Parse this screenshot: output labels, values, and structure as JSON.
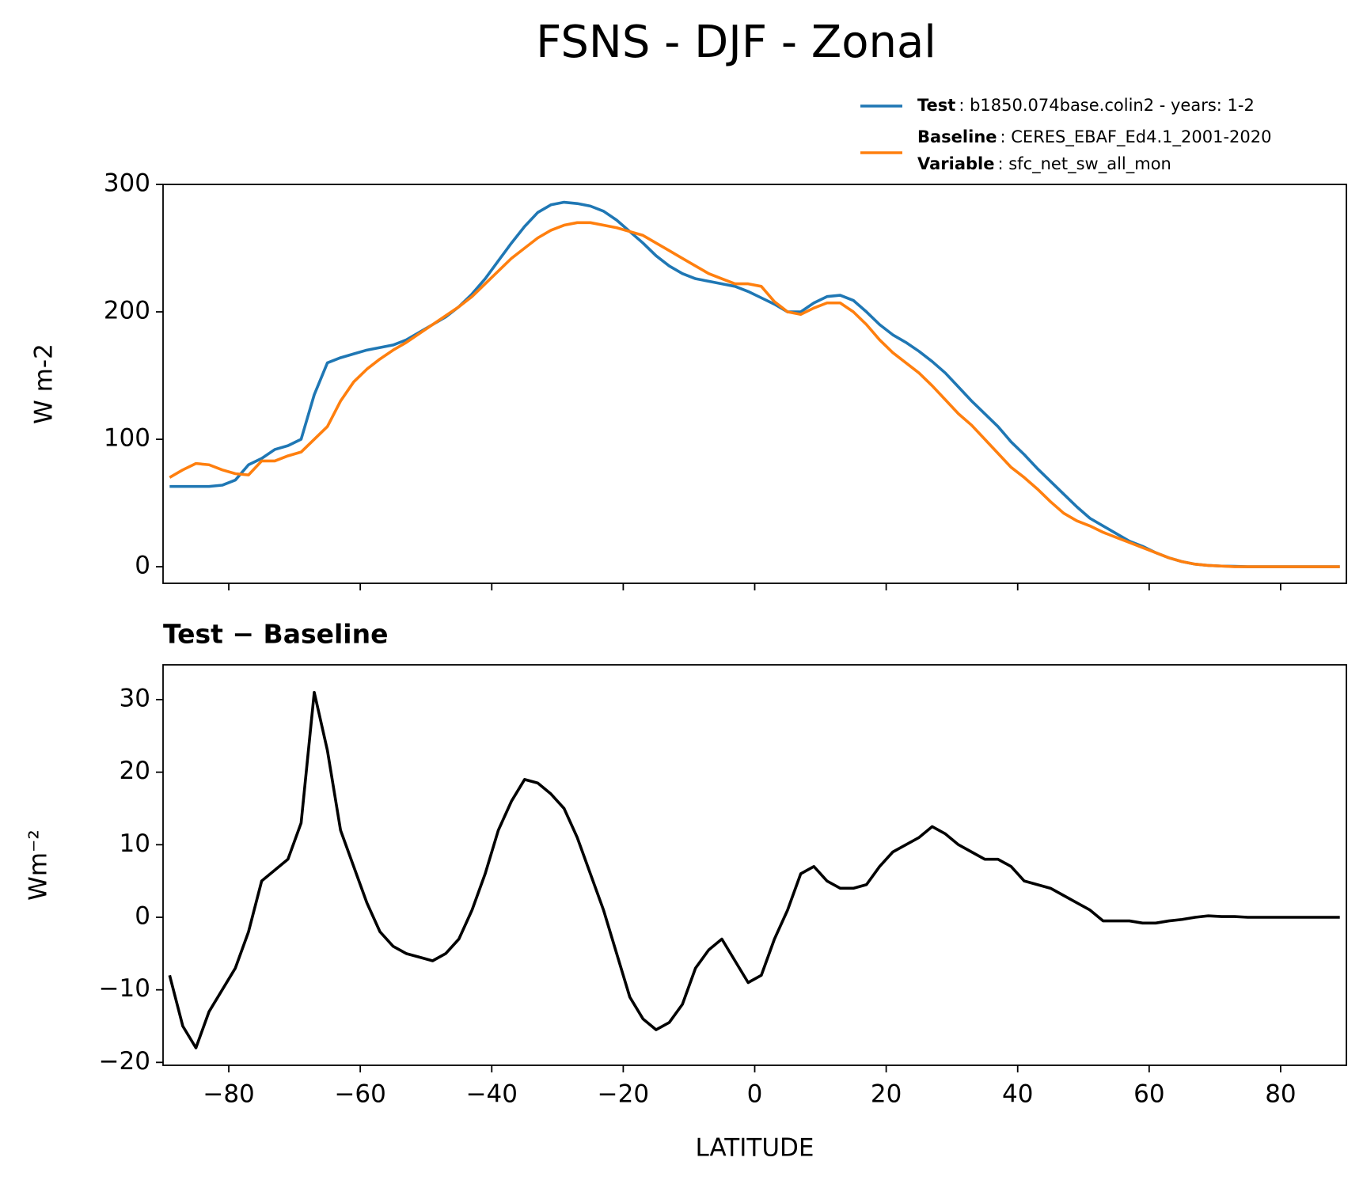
{
  "chart_data": [
    {
      "type": "line",
      "title": "FSNS - DJF - Zonal",
      "ylabel": "W m-2",
      "x": [
        -89,
        -87,
        -85,
        -83,
        -81,
        -79,
        -77,
        -75,
        -73,
        -71,
        -69,
        -67,
        -65,
        -63,
        -61,
        -59,
        -57,
        -55,
        -53,
        -51,
        -49,
        -47,
        -45,
        -43,
        -41,
        -39,
        -37,
        -35,
        -33,
        -31,
        -29,
        -27,
        -25,
        -23,
        -21,
        -19,
        -17,
        -15,
        -13,
        -11,
        -9,
        -7,
        -5,
        -3,
        -1,
        1,
        3,
        5,
        7,
        9,
        11,
        13,
        15,
        17,
        19,
        21,
        23,
        25,
        27,
        29,
        31,
        33,
        35,
        37,
        39,
        41,
        43,
        45,
        47,
        49,
        51,
        53,
        55,
        57,
        59,
        61,
        63,
        65,
        67,
        69,
        71,
        73,
        75,
        77,
        79,
        81,
        83,
        85,
        87,
        89
      ],
      "series": [
        {
          "name": "Test",
          "label": ": b1850.074base.colin2 - years: 1-2",
          "color": "#1f77b4",
          "values": [
            63,
            63,
            63,
            63,
            64,
            68,
            80,
            85,
            92,
            95,
            100,
            135,
            160,
            164,
            167,
            170,
            172,
            174,
            178,
            184,
            190,
            196,
            204,
            214,
            226,
            240,
            254,
            267,
            278,
            284,
            286,
            285,
            283,
            279,
            272,
            263,
            254,
            244,
            236,
            230,
            226,
            224,
            222,
            220,
            216,
            211,
            206,
            200,
            200,
            207,
            212,
            213,
            209,
            200,
            190,
            182,
            176,
            169,
            161,
            152,
            141,
            130,
            120,
            110,
            98,
            88,
            77,
            67,
            57,
            47,
            38,
            32,
            26,
            20,
            16,
            11,
            7,
            4,
            2,
            1,
            0.5,
            0.3,
            0,
            0,
            0,
            0,
            0,
            0,
            0,
            0
          ]
        },
        {
          "name": "Baseline",
          "label": ": CERES_EBAF_Ed4.1_2001-2020",
          "color": "#ff7f0e",
          "values": [
            70,
            76,
            81,
            80,
            76,
            73,
            72,
            83,
            83,
            87,
            90,
            100,
            110,
            130,
            145,
            155,
            163,
            170,
            176,
            183,
            190,
            197,
            204,
            212,
            222,
            232,
            242,
            250,
            258,
            264,
            268,
            270,
            270,
            268,
            266,
            263,
            260,
            254,
            248,
            242,
            236,
            230,
            226,
            222,
            222,
            220,
            208,
            200,
            198,
            203,
            207,
            207,
            200,
            190,
            178,
            168,
            160,
            152,
            142,
            131,
            120,
            111,
            100,
            89,
            78,
            70,
            61,
            51,
            42,
            36,
            32,
            27,
            23,
            19,
            15,
            11,
            7,
            4,
            2,
            1,
            0.5,
            0,
            0,
            0,
            0,
            0,
            0,
            0,
            0,
            0
          ]
        }
      ],
      "legend_notes": [
        {
          "name": "Variable",
          "label": ": sfc_net_sw_all_mon"
        }
      ],
      "xlim": [
        -90,
        90
      ],
      "xticks": [
        -80,
        -60,
        -40,
        -20,
        0,
        20,
        40,
        60,
        80
      ],
      "ylim": [
        -13,
        300
      ],
      "yticks": [
        0,
        100,
        200,
        300
      ]
    },
    {
      "type": "line",
      "title": "Test − Baseline",
      "xlabel": "LATITUDE",
      "ylabel": "Wm⁻²",
      "x": [
        -89,
        -87,
        -85,
        -83,
        -81,
        -79,
        -77,
        -75,
        -73,
        -71,
        -69,
        -67,
        -65,
        -63,
        -61,
        -59,
        -57,
        -55,
        -53,
        -51,
        -49,
        -47,
        -45,
        -43,
        -41,
        -39,
        -37,
        -35,
        -33,
        -31,
        -29,
        -27,
        -25,
        -23,
        -21,
        -19,
        -17,
        -15,
        -13,
        -11,
        -9,
        -7,
        -5,
        -3,
        -1,
        1,
        3,
        5,
        7,
        9,
        11,
        13,
        15,
        17,
        19,
        21,
        23,
        25,
        27,
        29,
        31,
        33,
        35,
        37,
        39,
        41,
        43,
        45,
        47,
        49,
        51,
        53,
        55,
        57,
        59,
        61,
        63,
        65,
        67,
        69,
        71,
        73,
        75,
        77,
        79,
        81,
        83,
        85,
        87,
        89
      ],
      "series": [
        {
          "name": "Test − Baseline",
          "color": "#000000",
          "values": [
            -8,
            -15,
            -18,
            -13,
            -10,
            -7,
            -2,
            5,
            6.5,
            8,
            13,
            31,
            23,
            12,
            7,
            2,
            -2,
            -4,
            -5,
            -5.5,
            -6,
            -5,
            -3,
            1,
            6,
            12,
            16,
            19,
            18.5,
            17,
            15,
            11,
            6,
            1,
            -5,
            -11,
            -14,
            -15.5,
            -14.5,
            -12,
            -7,
            -4.5,
            -3,
            -6,
            -9,
            -8,
            -3,
            1,
            6,
            7,
            5,
            4,
            4,
            4.5,
            7,
            9,
            10,
            11,
            12.5,
            11.5,
            10,
            9,
            8,
            8,
            7,
            5,
            4.5,
            4,
            3,
            2,
            1,
            -0.5,
            -0.5,
            -0.5,
            -0.8,
            -0.8,
            -0.5,
            -0.3,
            0,
            0.2,
            0.1,
            0.1,
            0,
            0,
            0,
            0,
            0,
            0,
            0,
            0
          ]
        }
      ],
      "xlim": [
        -90,
        90
      ],
      "xticks": [
        {
          "value": -80,
          "label": "−80"
        },
        {
          "value": -60,
          "label": "−60"
        },
        {
          "value": -40,
          "label": "−40"
        },
        {
          "value": -20,
          "label": "−20"
        },
        0,
        20,
        40,
        60,
        80
      ],
      "ylim": [
        -20.4,
        34.8
      ],
      "yticks": [
        {
          "value": -20,
          "label": "−20"
        },
        {
          "value": -10,
          "label": "−10"
        },
        0,
        10,
        20,
        30
      ]
    }
  ]
}
